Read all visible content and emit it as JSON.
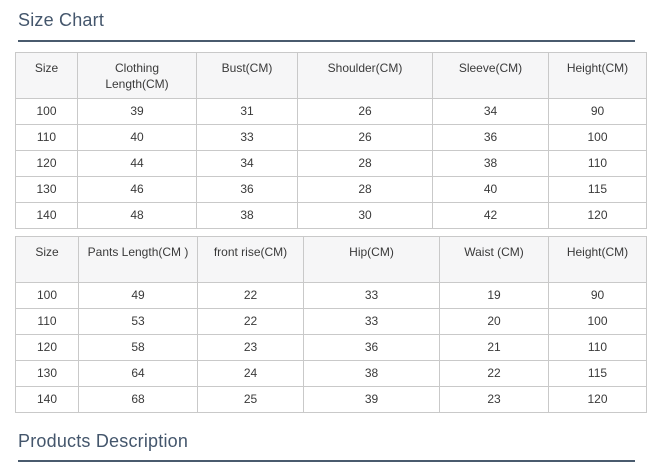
{
  "page": {
    "size_chart_title": "Size Chart",
    "products_description_title": "Products Description"
  },
  "colors": {
    "heading": "#44566c",
    "divider": "#4a5b6e",
    "table_border": "#c9c9c9",
    "header_background": "#f6f6f7",
    "cell_text": "#3a3a3a"
  },
  "tables": [
    {
      "name": "clothing-size-table",
      "headers": [
        "Size",
        "Clothing Length(CM)",
        "Bust(CM)",
        "Shoulder(CM)",
        "Sleeve(CM)",
        "Height(CM)"
      ],
      "rows": [
        [
          "100",
          "39",
          "31",
          "26",
          "34",
          "90"
        ],
        [
          "110",
          "40",
          "33",
          "26",
          "36",
          "100"
        ],
        [
          "120",
          "44",
          "34",
          "28",
          "38",
          "110"
        ],
        [
          "130",
          "46",
          "36",
          "28",
          "40",
          "115"
        ],
        [
          "140",
          "48",
          "38",
          "30",
          "42",
          "120"
        ]
      ]
    },
    {
      "name": "pants-size-table",
      "headers": [
        "Size",
        "Pants Length(CM )",
        "front rise(CM)",
        "Hip(CM)",
        "Waist (CM)",
        "Height(CM)"
      ],
      "rows": [
        [
          "100",
          "49",
          "22",
          "33",
          "19",
          "90"
        ],
        [
          "110",
          "53",
          "22",
          "33",
          "20",
          "100"
        ],
        [
          "120",
          "58",
          "23",
          "36",
          "21",
          "110"
        ],
        [
          "130",
          "64",
          "24",
          "38",
          "22",
          "115"
        ],
        [
          "140",
          "68",
          "25",
          "39",
          "23",
          "120"
        ]
      ]
    }
  ]
}
